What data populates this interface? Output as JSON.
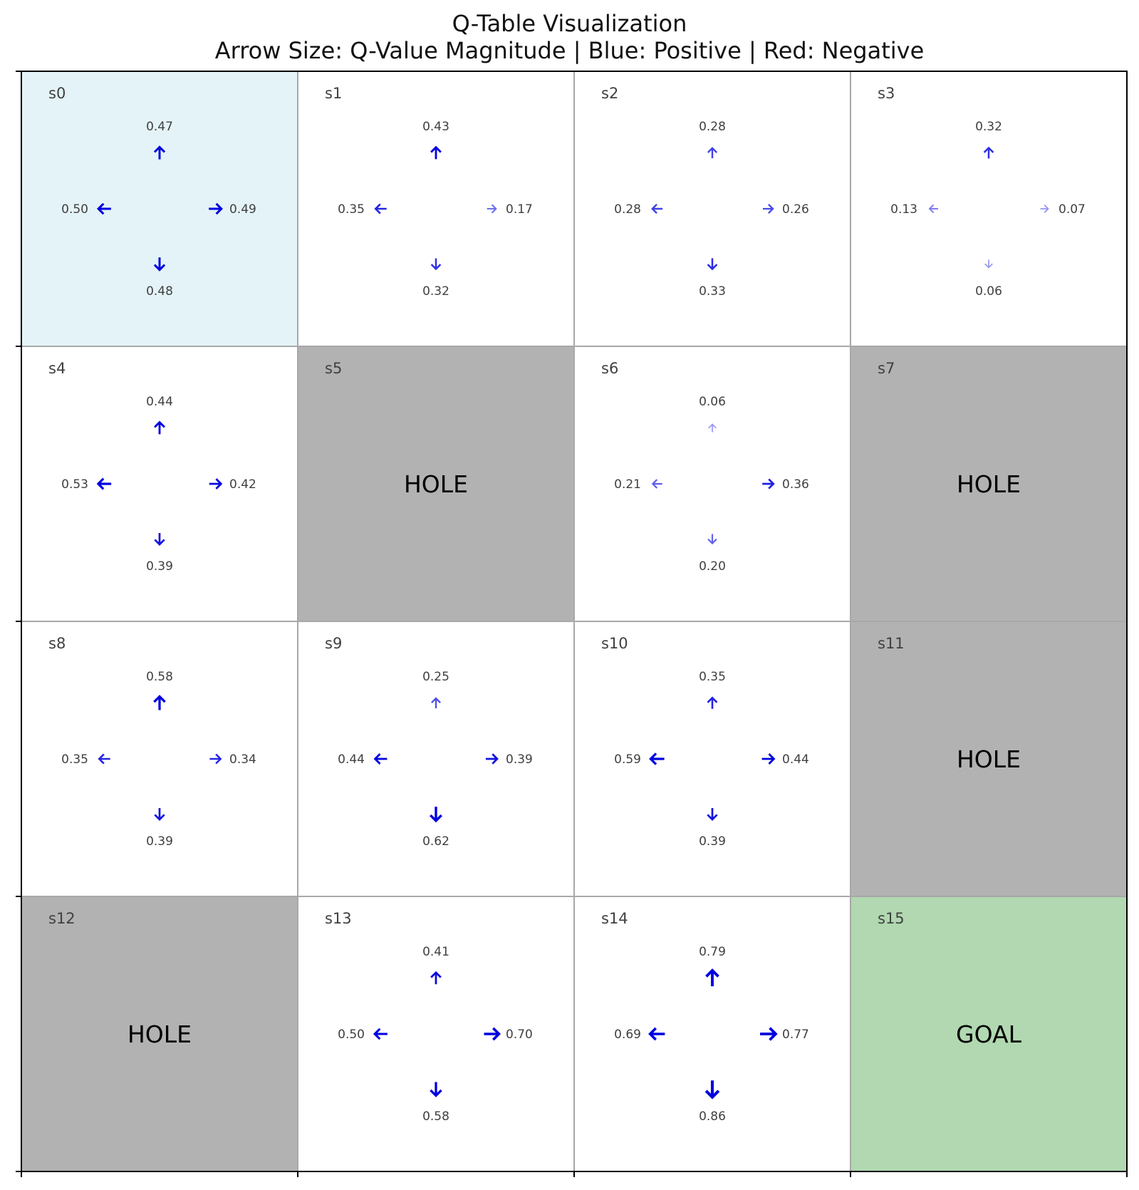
{
  "title": "Q-Table Visualization",
  "subtitle": "Arrow Size: Q-Value Magnitude | Blue: Positive | Red: Negative",
  "colors": {
    "start": "#e4f3f7",
    "hole": "#b2b2b2",
    "goal": "#b1d8b1",
    "normal": "#ffffff",
    "positive": "#0000e0",
    "negative": "#e00000"
  },
  "grid": {
    "rows": 4,
    "cols": 4
  },
  "states": [
    {
      "name": "s0",
      "type": "start",
      "q": {
        "up": 0.47,
        "left": 0.5,
        "right": 0.49,
        "down": 0.48
      }
    },
    {
      "name": "s1",
      "type": "normal",
      "q": {
        "up": 0.43,
        "left": 0.35,
        "right": 0.17,
        "down": 0.32
      }
    },
    {
      "name": "s2",
      "type": "normal",
      "q": {
        "up": 0.28,
        "left": 0.28,
        "right": 0.26,
        "down": 0.33
      }
    },
    {
      "name": "s3",
      "type": "normal",
      "q": {
        "up": 0.32,
        "left": 0.13,
        "right": 0.07,
        "down": 0.06
      }
    },
    {
      "name": "s4",
      "type": "normal",
      "q": {
        "up": 0.44,
        "left": 0.53,
        "right": 0.42,
        "down": 0.39
      }
    },
    {
      "name": "s5",
      "type": "hole",
      "label": "HOLE"
    },
    {
      "name": "s6",
      "type": "normal",
      "q": {
        "up": 0.06,
        "left": 0.21,
        "right": 0.36,
        "down": 0.2
      }
    },
    {
      "name": "s7",
      "type": "hole",
      "label": "HOLE"
    },
    {
      "name": "s8",
      "type": "normal",
      "q": {
        "up": 0.58,
        "left": 0.35,
        "right": 0.34,
        "down": 0.39
      }
    },
    {
      "name": "s9",
      "type": "normal",
      "q": {
        "up": 0.25,
        "left": 0.44,
        "right": 0.39,
        "down": 0.62
      }
    },
    {
      "name": "s10",
      "type": "normal",
      "q": {
        "up": 0.35,
        "left": 0.59,
        "right": 0.44,
        "down": 0.39
      }
    },
    {
      "name": "s11",
      "type": "hole",
      "label": "HOLE"
    },
    {
      "name": "s12",
      "type": "hole",
      "label": "HOLE"
    },
    {
      "name": "s13",
      "type": "normal",
      "q": {
        "up": 0.41,
        "left": 0.5,
        "right": 0.7,
        "down": 0.58
      }
    },
    {
      "name": "s14",
      "type": "normal",
      "q": {
        "up": 0.79,
        "left": 0.69,
        "right": 0.77,
        "down": 0.86
      }
    },
    {
      "name": "s15",
      "type": "goal",
      "label": "GOAL"
    }
  ]
}
